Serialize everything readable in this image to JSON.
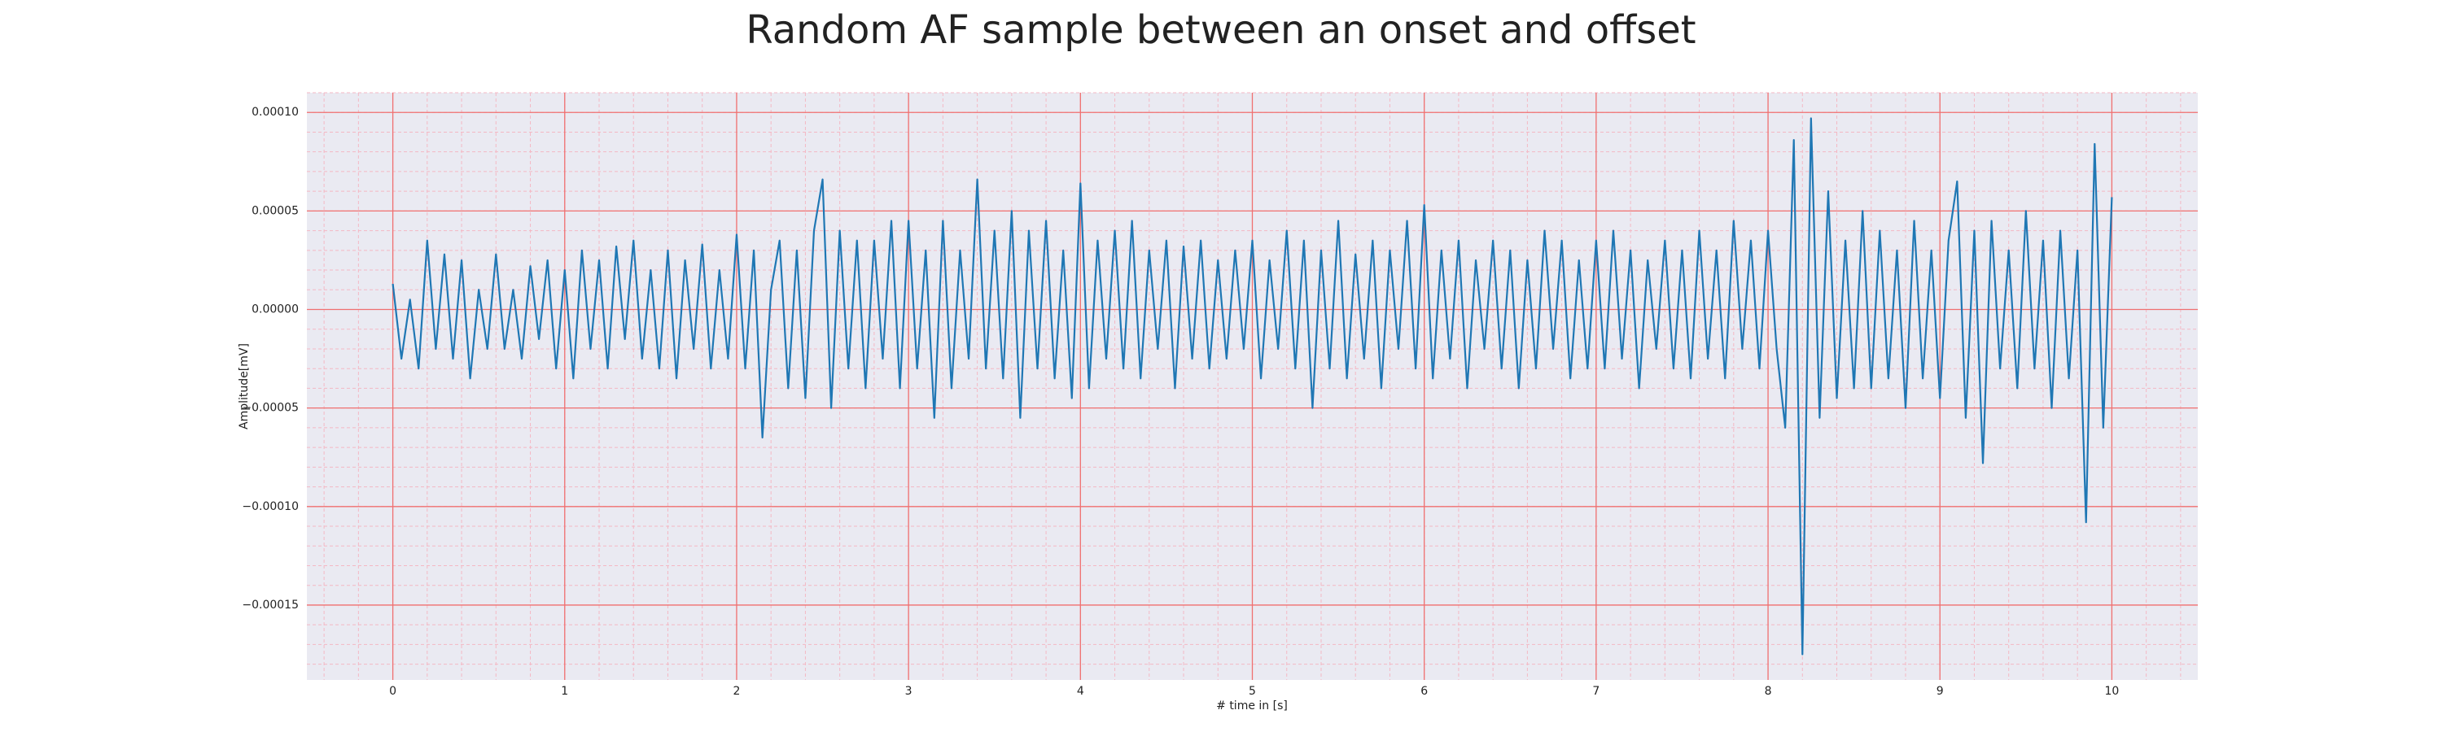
{
  "chart_data": {
    "type": "line",
    "title": "Random AF sample between an onset and offset",
    "xlabel": "# time in [s]",
    "ylabel": "Amplitude[mV]",
    "color": "#1f77b4",
    "grid": true,
    "xlim": [
      -0.5,
      10.5
    ],
    "ylim": [
      -0.000188,
      0.00011
    ],
    "xticks": [
      0,
      1,
      2,
      3,
      4,
      5,
      6,
      7,
      8,
      9,
      10
    ],
    "yticks": [
      {
        "value": 0.0001,
        "label": "0.00010"
      },
      {
        "value": 5e-05,
        "label": "0.00005"
      },
      {
        "value": 0,
        "label": "0.00000"
      },
      {
        "value": -5e-05,
        "label": "−0.00005"
      },
      {
        "value": -0.0001,
        "label": "−0.00010"
      },
      {
        "value": -0.00015,
        "label": "−0.00015"
      }
    ],
    "xminorticks": [
      -0.4,
      -0.2,
      0,
      0.2,
      0.4,
      0.6,
      0.8,
      1,
      1.2,
      1.4,
      1.6,
      1.8,
      2,
      2.2,
      2.4,
      2.6,
      2.8,
      3,
      3.2,
      3.4,
      3.6,
      3.8,
      4,
      4.2,
      4.4,
      4.6,
      4.8,
      5,
      5.2,
      5.4,
      5.6,
      5.8,
      6,
      6.2,
      6.4,
      6.6,
      6.8,
      7,
      7.2,
      7.4,
      7.6,
      7.8,
      8,
      8.2,
      8.4,
      8.6,
      8.8,
      9,
      9.2,
      9.4,
      9.6,
      9.8,
      10,
      10.2,
      10.4
    ],
    "yminorticks": [
      -0.00018,
      -0.00017,
      -0.00016,
      -0.00015,
      -0.00014,
      -0.00013,
      -0.00012,
      -0.00011,
      -0.0001,
      -9e-05,
      -8e-05,
      -7e-05,
      -6e-05,
      -5e-05,
      -4e-05,
      -3e-05,
      -2e-05,
      -1e-05,
      0,
      1e-05,
      2e-05,
      3e-05,
      4e-05,
      5e-05,
      6e-05,
      7e-05,
      8e-05,
      9e-05,
      0.0001,
      0.00011
    ],
    "x": [
      0,
      0.05,
      0.1,
      0.15,
      0.2,
      0.25,
      0.3,
      0.35,
      0.4,
      0.45,
      0.5,
      0.55,
      0.6,
      0.65,
      0.7,
      0.75,
      0.8,
      0.85,
      0.9,
      0.95,
      1,
      1.05,
      1.1,
      1.15,
      1.2,
      1.25,
      1.3,
      1.35,
      1.4,
      1.45,
      1.5,
      1.55,
      1.6,
      1.65,
      1.7,
      1.75,
      1.8,
      1.85,
      1.9,
      1.95,
      2,
      2.05,
      2.1,
      2.15,
      2.2,
      2.25,
      2.3,
      2.35,
      2.4,
      2.45,
      2.5,
      2.55,
      2.6,
      2.65,
      2.7,
      2.75,
      2.8,
      2.85,
      2.9,
      2.95,
      3,
      3.05,
      3.1,
      3.15,
      3.2,
      3.25,
      3.3,
      3.35,
      3.4,
      3.45,
      3.5,
      3.55,
      3.6,
      3.65,
      3.7,
      3.75,
      3.8,
      3.85,
      3.9,
      3.95,
      4,
      4.05,
      4.1,
      4.15,
      4.2,
      4.25,
      4.3,
      4.35,
      4.4,
      4.45,
      4.5,
      4.55,
      4.6,
      4.65,
      4.7,
      4.75,
      4.8,
      4.85,
      4.9,
      4.95,
      5,
      5.05,
      5.1,
      5.15,
      5.2,
      5.25,
      5.3,
      5.35,
      5.4,
      5.45,
      5.5,
      5.55,
      5.6,
      5.65,
      5.7,
      5.75,
      5.8,
      5.85,
      5.9,
      5.95,
      6,
      6.05,
      6.1,
      6.15,
      6.2,
      6.25,
      6.3,
      6.35,
      6.4,
      6.45,
      6.5,
      6.55,
      6.6,
      6.65,
      6.7,
      6.75,
      6.8,
      6.85,
      6.9,
      6.95,
      7,
      7.05,
      7.1,
      7.15,
      7.2,
      7.25,
      7.3,
      7.35,
      7.4,
      7.45,
      7.5,
      7.55,
      7.6,
      7.65,
      7.7,
      7.75,
      7.8,
      7.85,
      7.9,
      7.95,
      8,
      8.05,
      8.1,
      8.15,
      8.2,
      8.25,
      8.3,
      8.35,
      8.4,
      8.45,
      8.5,
      8.55,
      8.6,
      8.65,
      8.7,
      8.75,
      8.8,
      8.85,
      8.9,
      8.95,
      9,
      9.05,
      9.1,
      9.15,
      9.2,
      9.25,
      9.3,
      9.35,
      9.4,
      9.45,
      9.5,
      9.55,
      9.6,
      9.65,
      9.7,
      9.75,
      9.8,
      9.85,
      9.9,
      9.95,
      10
    ],
    "values": [
      1.3e-05,
      -2.5e-05,
      5e-06,
      -3e-05,
      3.5e-05,
      -2e-05,
      2.8e-05,
      -2.5e-05,
      2.5e-05,
      -3.5e-05,
      1e-05,
      -2e-05,
      2.8e-05,
      -2e-05,
      1e-05,
      -2.5e-05,
      2.2e-05,
      -1.5e-05,
      2.5e-05,
      -3e-05,
      2e-05,
      -3.5e-05,
      3e-05,
      -2e-05,
      2.5e-05,
      -3e-05,
      3.2e-05,
      -1.5e-05,
      3.5e-05,
      -2.5e-05,
      2e-05,
      -3e-05,
      3e-05,
      -3.5e-05,
      2.5e-05,
      -2e-05,
      3.3e-05,
      -3e-05,
      2e-05,
      -2.5e-05,
      3.8e-05,
      -3e-05,
      3e-05,
      -6.5e-05,
      1e-05,
      3.5e-05,
      -4e-05,
      3e-05,
      -4.5e-05,
      4e-05,
      6.6e-05,
      -5e-05,
      4e-05,
      -3e-05,
      3.5e-05,
      -4e-05,
      3.5e-05,
      -2.5e-05,
      4.5e-05,
      -4e-05,
      4.5e-05,
      -3e-05,
      3e-05,
      -5.5e-05,
      4.5e-05,
      -4e-05,
      3e-05,
      -2.5e-05,
      6.6e-05,
      -3e-05,
      4e-05,
      -3.5e-05,
      5e-05,
      -5.5e-05,
      4e-05,
      -3e-05,
      4.5e-05,
      -3.5e-05,
      3e-05,
      -4.5e-05,
      6.4e-05,
      -4e-05,
      3.5e-05,
      -2.5e-05,
      4e-05,
      -3e-05,
      4.5e-05,
      -3.5e-05,
      3e-05,
      -2e-05,
      3.5e-05,
      -4e-05,
      3.2e-05,
      -2.5e-05,
      3.5e-05,
      -3e-05,
      2.5e-05,
      -2.5e-05,
      3e-05,
      -2e-05,
      3.5e-05,
      -3.5e-05,
      2.5e-05,
      -2e-05,
      4e-05,
      -3e-05,
      3.5e-05,
      -5e-05,
      3e-05,
      -3e-05,
      4.5e-05,
      -3.5e-05,
      2.8e-05,
      -2.5e-05,
      3.5e-05,
      -4e-05,
      3e-05,
      -2e-05,
      4.5e-05,
      -3e-05,
      5.3e-05,
      -3.5e-05,
      3e-05,
      -2.5e-05,
      3.5e-05,
      -4e-05,
      2.5e-05,
      -2e-05,
      3.5e-05,
      -3e-05,
      3e-05,
      -4e-05,
      2.5e-05,
      -3e-05,
      4e-05,
      -2e-05,
      3.5e-05,
      -3.5e-05,
      2.5e-05,
      -3e-05,
      3.5e-05,
      -3e-05,
      4e-05,
      -2.5e-05,
      3e-05,
      -4e-05,
      2.5e-05,
      -2e-05,
      3.5e-05,
      -3e-05,
      3e-05,
      -3.5e-05,
      4e-05,
      -2.5e-05,
      3e-05,
      -3.5e-05,
      4.5e-05,
      -2e-05,
      3.5e-05,
      -3e-05,
      4e-05,
      -2e-05,
      -6e-05,
      8.6e-05,
      -0.000175,
      9.7e-05,
      -5.5e-05,
      6e-05,
      -4.5e-05,
      3.5e-05,
      -4e-05,
      5e-05,
      -4e-05,
      4e-05,
      -3.5e-05,
      3e-05,
      -5e-05,
      4.5e-05,
      -3.5e-05,
      3e-05,
      -4.5e-05,
      3.5e-05,
      6.5e-05,
      -5.5e-05,
      4e-05,
      -7.8e-05,
      4.5e-05,
      -3e-05,
      3e-05,
      -4e-05,
      5e-05,
      -3e-05,
      3.5e-05,
      -5e-05,
      4e-05,
      -3.5e-05,
      3e-05,
      -0.000108,
      8.4e-05,
      -6e-05,
      5.7e-05
    ]
  }
}
